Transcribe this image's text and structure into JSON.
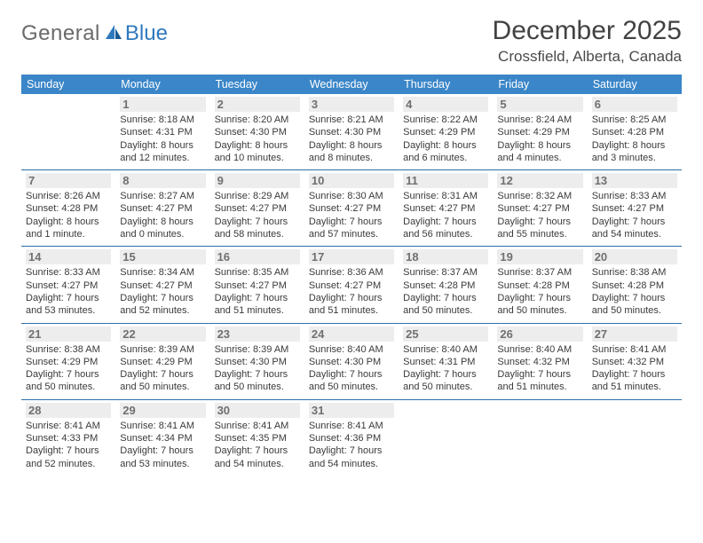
{
  "brand": {
    "part1": "General",
    "part2": "Blue"
  },
  "title": {
    "month": "December 2025",
    "location": "Crossfield, Alberta, Canada"
  },
  "colors": {
    "header_bg": "#3b86c8",
    "header_fg": "#ffffff",
    "row_border": "#2e6fa8",
    "daynum_bg": "#ededed",
    "daynum_fg": "#707070",
    "logo_gray": "#6a6a6a",
    "logo_blue": "#2f79bd",
    "title_fg": "#424242"
  },
  "calendar": {
    "type": "calendar",
    "columns": [
      "Sunday",
      "Monday",
      "Tuesday",
      "Wednesday",
      "Thursday",
      "Friday",
      "Saturday"
    ],
    "first_weekday_offset": 1,
    "days": [
      {
        "n": 1,
        "sunrise": "8:18 AM",
        "sunset": "4:31 PM",
        "daylight": "8 hours and 12 minutes."
      },
      {
        "n": 2,
        "sunrise": "8:20 AM",
        "sunset": "4:30 PM",
        "daylight": "8 hours and 10 minutes."
      },
      {
        "n": 3,
        "sunrise": "8:21 AM",
        "sunset": "4:30 PM",
        "daylight": "8 hours and 8 minutes."
      },
      {
        "n": 4,
        "sunrise": "8:22 AM",
        "sunset": "4:29 PM",
        "daylight": "8 hours and 6 minutes."
      },
      {
        "n": 5,
        "sunrise": "8:24 AM",
        "sunset": "4:29 PM",
        "daylight": "8 hours and 4 minutes."
      },
      {
        "n": 6,
        "sunrise": "8:25 AM",
        "sunset": "4:28 PM",
        "daylight": "8 hours and 3 minutes."
      },
      {
        "n": 7,
        "sunrise": "8:26 AM",
        "sunset": "4:28 PM",
        "daylight": "8 hours and 1 minute."
      },
      {
        "n": 8,
        "sunrise": "8:27 AM",
        "sunset": "4:27 PM",
        "daylight": "8 hours and 0 minutes."
      },
      {
        "n": 9,
        "sunrise": "8:29 AM",
        "sunset": "4:27 PM",
        "daylight": "7 hours and 58 minutes."
      },
      {
        "n": 10,
        "sunrise": "8:30 AM",
        "sunset": "4:27 PM",
        "daylight": "7 hours and 57 minutes."
      },
      {
        "n": 11,
        "sunrise": "8:31 AM",
        "sunset": "4:27 PM",
        "daylight": "7 hours and 56 minutes."
      },
      {
        "n": 12,
        "sunrise": "8:32 AM",
        "sunset": "4:27 PM",
        "daylight": "7 hours and 55 minutes."
      },
      {
        "n": 13,
        "sunrise": "8:33 AM",
        "sunset": "4:27 PM",
        "daylight": "7 hours and 54 minutes."
      },
      {
        "n": 14,
        "sunrise": "8:33 AM",
        "sunset": "4:27 PM",
        "daylight": "7 hours and 53 minutes."
      },
      {
        "n": 15,
        "sunrise": "8:34 AM",
        "sunset": "4:27 PM",
        "daylight": "7 hours and 52 minutes."
      },
      {
        "n": 16,
        "sunrise": "8:35 AM",
        "sunset": "4:27 PM",
        "daylight": "7 hours and 51 minutes."
      },
      {
        "n": 17,
        "sunrise": "8:36 AM",
        "sunset": "4:27 PM",
        "daylight": "7 hours and 51 minutes."
      },
      {
        "n": 18,
        "sunrise": "8:37 AM",
        "sunset": "4:28 PM",
        "daylight": "7 hours and 50 minutes."
      },
      {
        "n": 19,
        "sunrise": "8:37 AM",
        "sunset": "4:28 PM",
        "daylight": "7 hours and 50 minutes."
      },
      {
        "n": 20,
        "sunrise": "8:38 AM",
        "sunset": "4:28 PM",
        "daylight": "7 hours and 50 minutes."
      },
      {
        "n": 21,
        "sunrise": "8:38 AM",
        "sunset": "4:29 PM",
        "daylight": "7 hours and 50 minutes."
      },
      {
        "n": 22,
        "sunrise": "8:39 AM",
        "sunset": "4:29 PM",
        "daylight": "7 hours and 50 minutes."
      },
      {
        "n": 23,
        "sunrise": "8:39 AM",
        "sunset": "4:30 PM",
        "daylight": "7 hours and 50 minutes."
      },
      {
        "n": 24,
        "sunrise": "8:40 AM",
        "sunset": "4:30 PM",
        "daylight": "7 hours and 50 minutes."
      },
      {
        "n": 25,
        "sunrise": "8:40 AM",
        "sunset": "4:31 PM",
        "daylight": "7 hours and 50 minutes."
      },
      {
        "n": 26,
        "sunrise": "8:40 AM",
        "sunset": "4:32 PM",
        "daylight": "7 hours and 51 minutes."
      },
      {
        "n": 27,
        "sunrise": "8:41 AM",
        "sunset": "4:32 PM",
        "daylight": "7 hours and 51 minutes."
      },
      {
        "n": 28,
        "sunrise": "8:41 AM",
        "sunset": "4:33 PM",
        "daylight": "7 hours and 52 minutes."
      },
      {
        "n": 29,
        "sunrise": "8:41 AM",
        "sunset": "4:34 PM",
        "daylight": "7 hours and 53 minutes."
      },
      {
        "n": 30,
        "sunrise": "8:41 AM",
        "sunset": "4:35 PM",
        "daylight": "7 hours and 54 minutes."
      },
      {
        "n": 31,
        "sunrise": "8:41 AM",
        "sunset": "4:36 PM",
        "daylight": "7 hours and 54 minutes."
      }
    ],
    "labels": {
      "sunrise": "Sunrise:",
      "sunset": "Sunset:",
      "daylight": "Daylight:"
    },
    "cell_fontsize": 11,
    "header_fontsize": 12.5,
    "title_fontsize": 30,
    "location_fontsize": 17
  }
}
